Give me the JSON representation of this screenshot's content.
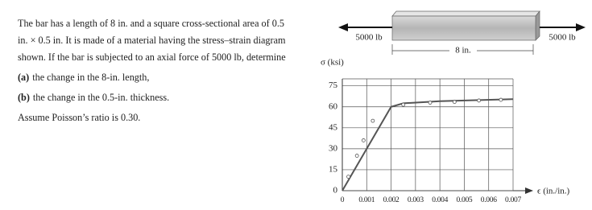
{
  "problem": {
    "statement": "The bar has a length of 8 in. and a square cross-sectional area of 0.5 in. × 0.5 in. It is made of a material having the stress–strain diagram shown. If the bar is subjected to an axial force of 5000 lb, determine",
    "parts": [
      {
        "label": "(a)",
        "text": "the change in the 8-in. length,"
      },
      {
        "label": "(b)",
        "text": "the change in the 0.5-in. thickness."
      }
    ],
    "note": "Assume Poisson’s ratio is 0.30."
  },
  "figure": {
    "force_left": "5000 lb",
    "force_right": "5000 lb",
    "length": "8 in."
  },
  "chart_data": {
    "type": "line",
    "y_label": "σ (ksi)",
    "x_label": "ϵ (in./in.)",
    "xlim": [
      0,
      0.007
    ],
    "ylim": [
      0,
      80
    ],
    "xticks": [
      0,
      0.001,
      0.002,
      0.003,
      0.004,
      0.005,
      0.006,
      0.007
    ],
    "yticks": [
      0,
      15,
      30,
      45,
      60,
      75
    ],
    "grid": true,
    "series": [
      {
        "color": "#555555",
        "x": [
          0,
          0.002,
          0.0025,
          0.004,
          0.007
        ],
        "values": [
          0,
          60,
          62.5,
          64,
          65.5
        ]
      },
      {
        "color": "#555555",
        "marker": "circle",
        "x": [
          0.00025,
          0.0006,
          0.00087,
          0.00125,
          0.0025,
          0.0036,
          0.0046,
          0.0056,
          0.0065
        ],
        "values": [
          10,
          25,
          36,
          50,
          61.5,
          63,
          63.5,
          64.5,
          65
        ]
      }
    ]
  }
}
